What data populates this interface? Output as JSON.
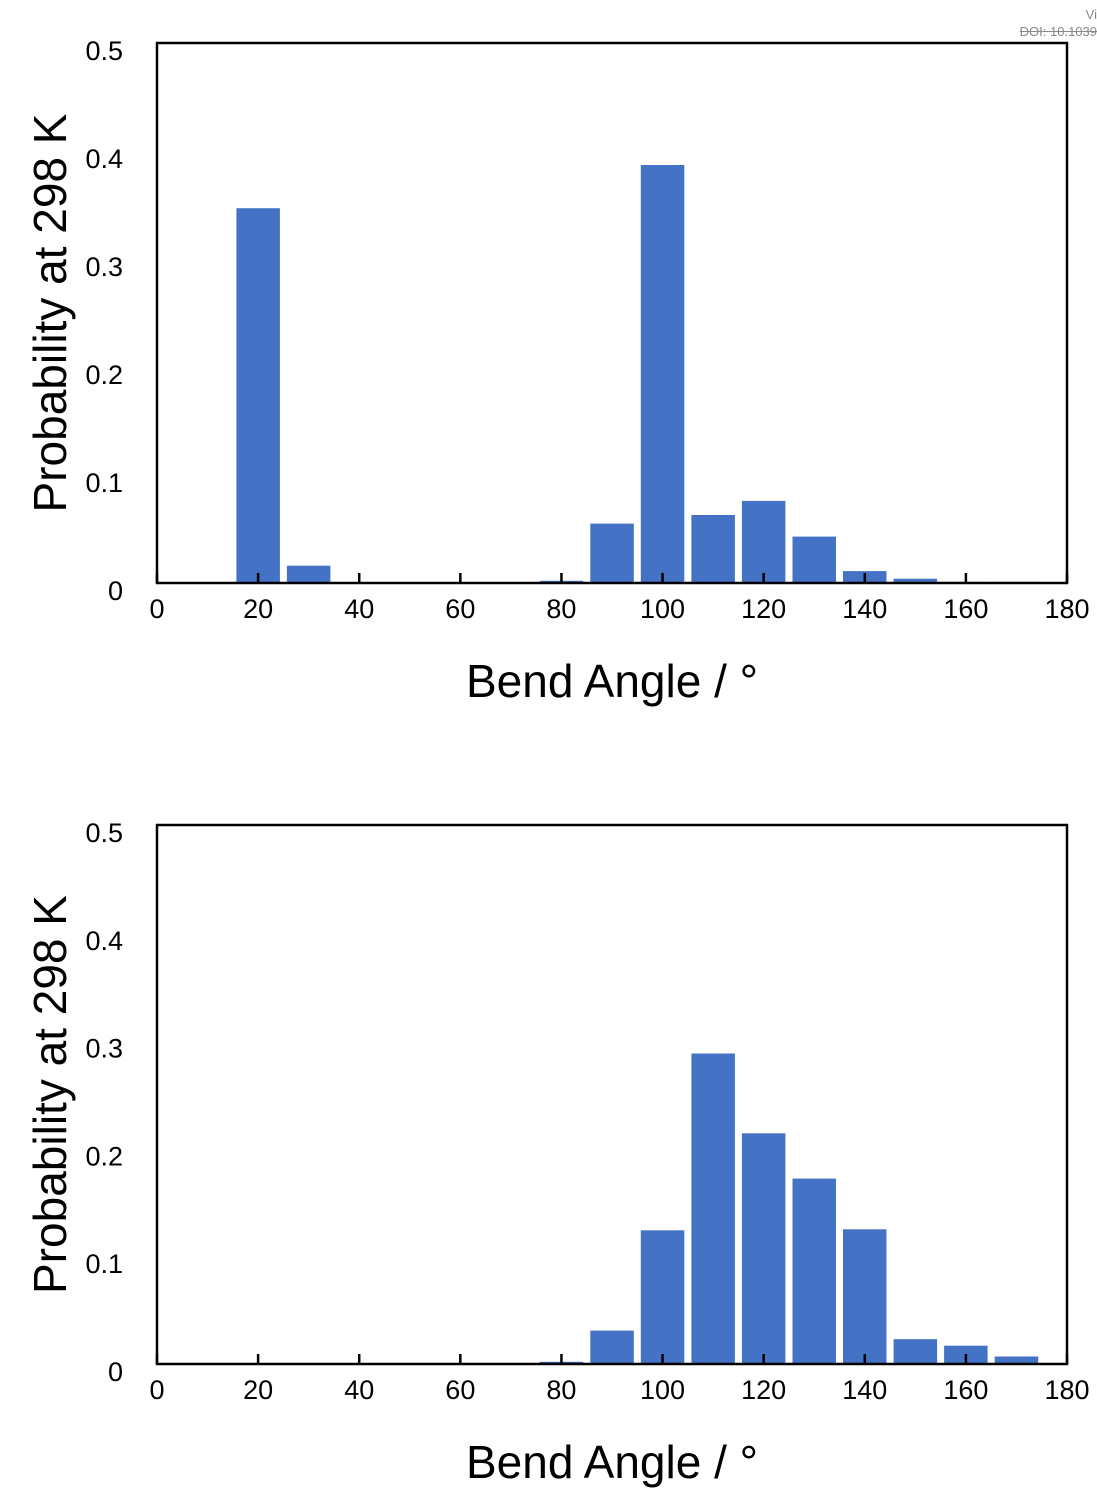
{
  "watermark": {
    "line1": "Vi",
    "line2": "DOI: 10.1039"
  },
  "chart_data": [
    {
      "type": "bar",
      "xlabel": "Bend Angle / °",
      "ylabel": "Probability at 298 K",
      "xlim": [
        0,
        180
      ],
      "ylim": [
        0,
        0.5
      ],
      "xticks": [
        0,
        20,
        40,
        60,
        80,
        100,
        120,
        140,
        160,
        180
      ],
      "yticks": [
        0,
        0.1,
        0.2,
        0.3,
        0.4,
        0.5
      ],
      "bar_color": "#4472C4",
      "legend": "none",
      "grid": false,
      "x": [
        20,
        30,
        40,
        50,
        60,
        70,
        80,
        90,
        100,
        110,
        120,
        130,
        140,
        150,
        160,
        170
      ],
      "values": [
        0.347,
        0.016,
        0,
        0,
        0,
        0,
        0.002,
        0.055,
        0.387,
        0.063,
        0.076,
        0.043,
        0.011,
        0.004,
        0.001,
        0.001
      ]
    },
    {
      "type": "bar",
      "xlabel": "Bend Angle / °",
      "ylabel": "Probability at 298 K",
      "xlim": [
        0,
        180
      ],
      "ylim": [
        0,
        0.5
      ],
      "xticks": [
        0,
        20,
        40,
        60,
        80,
        100,
        120,
        140,
        160,
        180
      ],
      "yticks": [
        0,
        0.1,
        0.2,
        0.3,
        0.4,
        0.5
      ],
      "bar_color": "#4472C4",
      "legend": "none",
      "grid": false,
      "x": [
        20,
        30,
        40,
        50,
        60,
        70,
        80,
        90,
        100,
        110,
        120,
        130,
        140,
        150,
        160,
        170
      ],
      "values": [
        0,
        0,
        0,
        0,
        0,
        0,
        0.002,
        0.031,
        0.124,
        0.288,
        0.214,
        0.172,
        0.125,
        0.023,
        0.017,
        0.007
      ]
    }
  ]
}
